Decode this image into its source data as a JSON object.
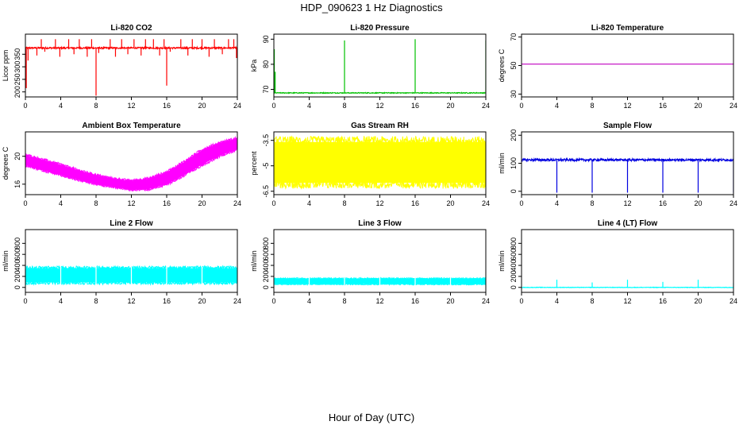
{
  "title": "HDP_090623  1 Hz Diagnostics",
  "xlabel": "Hour of Day (UTC)",
  "chart_data": [
    {
      "type": "line",
      "title": "Li-820 CO2",
      "ylabel": "Licor ppm",
      "color": "#ff0000",
      "xlim": [
        0,
        24
      ],
      "ylim": [
        180,
        430
      ],
      "x_ticks": [
        0,
        4,
        8,
        12,
        16,
        20,
        24
      ],
      "y_ticks": [
        200,
        250,
        300,
        350
      ],
      "baseline": 375,
      "noise": 3,
      "spikes": [
        {
          "x": 0.1,
          "y": 215
        },
        {
          "x": 0.3,
          "y": 325
        },
        {
          "x": 1.3,
          "y": 345
        },
        {
          "x": 1.8,
          "y": 410
        },
        {
          "x": 2.2,
          "y": 360
        },
        {
          "x": 3.4,
          "y": 410
        },
        {
          "x": 3.9,
          "y": 340
        },
        {
          "x": 4.9,
          "y": 410
        },
        {
          "x": 5.5,
          "y": 350
        },
        {
          "x": 6.1,
          "y": 410
        },
        {
          "x": 7.0,
          "y": 340
        },
        {
          "x": 7.5,
          "y": 410
        },
        {
          "x": 8.0,
          "y": 185
        },
        {
          "x": 8.3,
          "y": 355
        },
        {
          "x": 9.6,
          "y": 410
        },
        {
          "x": 10.2,
          "y": 340
        },
        {
          "x": 10.9,
          "y": 410
        },
        {
          "x": 11.6,
          "y": 350
        },
        {
          "x": 12.3,
          "y": 410
        },
        {
          "x": 13.1,
          "y": 345
        },
        {
          "x": 13.6,
          "y": 410
        },
        {
          "x": 14.5,
          "y": 410
        },
        {
          "x": 15.2,
          "y": 345
        },
        {
          "x": 15.7,
          "y": 410
        },
        {
          "x": 16.0,
          "y": 225
        },
        {
          "x": 16.4,
          "y": 360
        },
        {
          "x": 17.6,
          "y": 410
        },
        {
          "x": 18.4,
          "y": 345
        },
        {
          "x": 18.9,
          "y": 410
        },
        {
          "x": 20.0,
          "y": 410
        },
        {
          "x": 20.8,
          "y": 340
        },
        {
          "x": 21.4,
          "y": 410
        },
        {
          "x": 22.3,
          "y": 350
        },
        {
          "x": 23.0,
          "y": 410
        },
        {
          "x": 23.6,
          "y": 410
        },
        {
          "x": 23.9,
          "y": 335
        }
      ]
    },
    {
      "type": "line",
      "title": "Li-820 Pressure",
      "ylabel": "kPa",
      "color": "#00c000",
      "xlim": [
        0,
        24
      ],
      "ylim": [
        67,
        92
      ],
      "x_ticks": [
        0,
        4,
        8,
        12,
        16,
        20,
        24
      ],
      "y_ticks": [
        70,
        80,
        90
      ],
      "baseline": 68.6,
      "noise": 0.15,
      "spikes": [
        {
          "x": 0.05,
          "y": 86
        },
        {
          "x": 0.15,
          "y": 77
        },
        {
          "x": 8.0,
          "y": 89.5
        },
        {
          "x": 16.0,
          "y": 90
        },
        {
          "x": 24.0,
          "y": 89.5
        }
      ]
    },
    {
      "type": "line",
      "title": "Li-820 Temperature",
      "ylabel": "degrees C",
      "color": "#c000c0",
      "xlim": [
        0,
        24
      ],
      "ylim": [
        28,
        72
      ],
      "x_ticks": [
        0,
        4,
        8,
        12,
        16,
        20,
        24
      ],
      "y_ticks": [
        30,
        50,
        70
      ],
      "baseline": 51,
      "noise": 0,
      "spikes": []
    },
    {
      "type": "area",
      "title": "Ambient Box Temperature",
      "ylabel": "degrees C",
      "color": "#ff00ff",
      "xlim": [
        0,
        24
      ],
      "ylim": [
        14.5,
        23.5
      ],
      "x_ticks": [
        0,
        4,
        8,
        12,
        16,
        20,
        24
      ],
      "y_ticks": [
        16,
        20
      ],
      "band_x": [
        0,
        2,
        4,
        6,
        8,
        10,
        12,
        14,
        16,
        18,
        20,
        22,
        24
      ],
      "band_lower": [
        18.7,
        18.0,
        17.3,
        16.6,
        16.0,
        15.6,
        15.2,
        15.3,
        16.0,
        17.3,
        18.8,
        20.1,
        21.0
      ],
      "band_upper": [
        20.2,
        19.5,
        18.8,
        18.0,
        17.3,
        16.8,
        16.5,
        16.8,
        17.7,
        19.2,
        20.9,
        21.9,
        22.6
      ]
    },
    {
      "type": "area",
      "title": "Gas Stream RH",
      "ylabel": "percent",
      "color": "#ffff00",
      "xlim": [
        0,
        24
      ],
      "ylim": [
        -6.7,
        -3.0
      ],
      "x_ticks": [
        0,
        4,
        8,
        12,
        16,
        20,
        24
      ],
      "y_ticks": [
        -6.5,
        -5.0,
        -3.5
      ],
      "band_x": [
        0,
        24
      ],
      "band_lower": [
        -6.0,
        -6.0
      ],
      "band_upper": [
        -3.6,
        -3.6
      ]
    },
    {
      "type": "line",
      "title": "Sample Flow",
      "ylabel": "ml/min",
      "color": "#0000e0",
      "xlim": [
        0,
        24
      ],
      "ylim": [
        -12,
        212
      ],
      "x_ticks": [
        0,
        4,
        8,
        12,
        16,
        20,
        24
      ],
      "y_ticks": [
        0,
        100,
        200
      ],
      "baseline": 112,
      "noise": 4,
      "spikes": [
        {
          "x": 4.0,
          "y": -5
        },
        {
          "x": 8.0,
          "y": -5
        },
        {
          "x": 12.0,
          "y": -5
        },
        {
          "x": 16.0,
          "y": -5
        },
        {
          "x": 20.0,
          "y": -5
        },
        {
          "x": 24.0,
          "y": -5
        }
      ]
    },
    {
      "type": "area",
      "title": "Line 2 Flow",
      "ylabel": "ml/min",
      "color": "#00ffff",
      "xlim": [
        0,
        24
      ],
      "ylim": [
        -90,
        1050
      ],
      "x_ticks": [
        0,
        4,
        8,
        12,
        16,
        20,
        24
      ],
      "y_ticks": [
        0,
        200,
        400,
        600,
        800
      ],
      "band_x": [
        0,
        24
      ],
      "band_lower": [
        90,
        90
      ],
      "band_upper": [
        350,
        350
      ],
      "gaps": [
        4,
        8,
        12,
        16,
        20
      ]
    },
    {
      "type": "area",
      "title": "Line 3 Flow",
      "ylabel": "ml/min",
      "color": "#00ffff",
      "xlim": [
        0,
        24
      ],
      "ylim": [
        -90,
        1050
      ],
      "x_ticks": [
        0,
        4,
        8,
        12,
        16,
        20,
        24
      ],
      "y_ticks": [
        0,
        200,
        400,
        600,
        800
      ],
      "band_x": [
        0,
        24
      ],
      "band_lower": [
        60,
        60
      ],
      "band_upper": [
        160,
        160
      ],
      "gaps": [
        4,
        8,
        12,
        16,
        20
      ]
    },
    {
      "type": "line",
      "title": "Line 4 (LT) Flow",
      "ylabel": "ml/min",
      "color": "#00ffff",
      "xlim": [
        0,
        24
      ],
      "ylim": [
        -90,
        1050
      ],
      "x_ticks": [
        0,
        4,
        8,
        12,
        16,
        20,
        24
      ],
      "y_ticks": [
        0,
        200,
        400,
        600,
        800
      ],
      "baseline": 0,
      "noise": 4,
      "spikes": [
        {
          "x": 4.0,
          "y": 140
        },
        {
          "x": 8.0,
          "y": 90
        },
        {
          "x": 12.0,
          "y": 140
        },
        {
          "x": 16.0,
          "y": 100
        },
        {
          "x": 20.0,
          "y": 140
        },
        {
          "x": 24.0,
          "y": 80
        }
      ]
    }
  ]
}
